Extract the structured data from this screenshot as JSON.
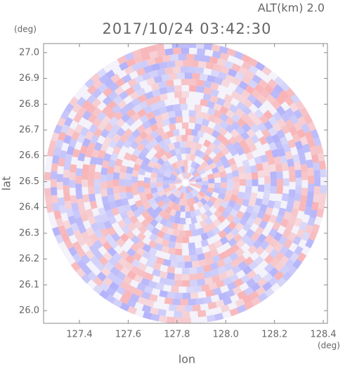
{
  "chart_data": {
    "type": "ppi",
    "title": "2017/10/24 03:42:30",
    "annotation": "ALT(km) 2.0",
    "x_label": "lon",
    "y_label": "lat",
    "x_unit": "(deg)",
    "y_unit": "(deg)",
    "xlim": [
      127.253,
      128.417
    ],
    "ylim": [
      25.951,
      27.035
    ],
    "xticks": [
      127.4,
      127.6,
      127.8,
      {
        "value": 128,
        "label": "128.0"
      },
      128.2,
      128.4
    ],
    "yticks": [
      {
        "value": 26,
        "label": "26.0"
      },
      26.1,
      26.2,
      26.3,
      26.4,
      26.5,
      26.6,
      26.7,
      26.8,
      26.9,
      {
        "value": 27,
        "label": "27.0"
      }
    ]
  }
}
